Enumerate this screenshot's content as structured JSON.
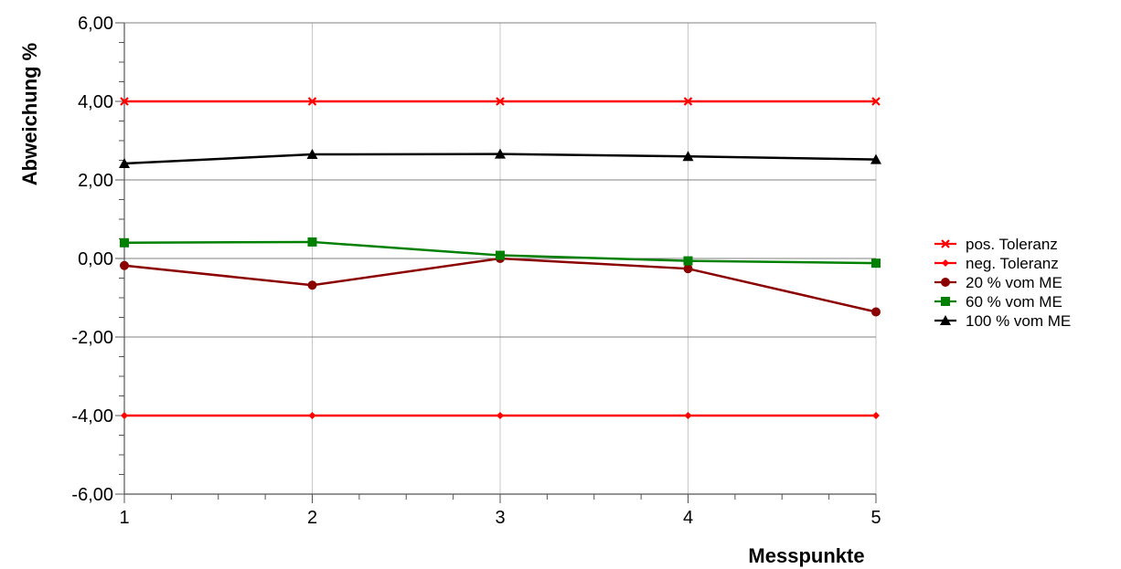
{
  "chart_data": {
    "type": "line",
    "title": "",
    "xlabel": "Messpunkte",
    "ylabel": "Abweichung %",
    "x": [
      1,
      2,
      3,
      4,
      5
    ],
    "x_tick_labels": [
      "1",
      "2",
      "3",
      "4",
      "5"
    ],
    "ylim": [
      -6,
      6
    ],
    "y_ticks": [
      -6,
      -4,
      -2,
      0,
      2,
      4,
      6
    ],
    "y_tick_labels": [
      "-6,00",
      "-4,00",
      "-2,00",
      "0,00",
      "2,00",
      "4,00",
      "6,00"
    ],
    "grid": true,
    "legend_position": "right",
    "series": [
      {
        "name": "pos. Toleranz",
        "values": [
          4,
          4,
          4,
          4,
          4
        ],
        "color": "#ff0000",
        "marker": "x"
      },
      {
        "name": "neg. Toleranz",
        "values": [
          -4,
          -4,
          -4,
          -4,
          -4
        ],
        "color": "#ff0000",
        "marker": "diamond"
      },
      {
        "name": "20 % vom ME",
        "values": [
          -0.18,
          -0.68,
          0.0,
          -0.26,
          -1.36
        ],
        "color": "#8b0000",
        "marker": "circle"
      },
      {
        "name": "60 % vom ME",
        "values": [
          0.4,
          0.42,
          0.08,
          -0.06,
          -0.12
        ],
        "color": "#008000",
        "marker": "square"
      },
      {
        "name": "100 % vom ME",
        "values": [
          2.42,
          2.65,
          2.66,
          2.6,
          2.52
        ],
        "color": "#000000",
        "marker": "triangle"
      }
    ]
  }
}
